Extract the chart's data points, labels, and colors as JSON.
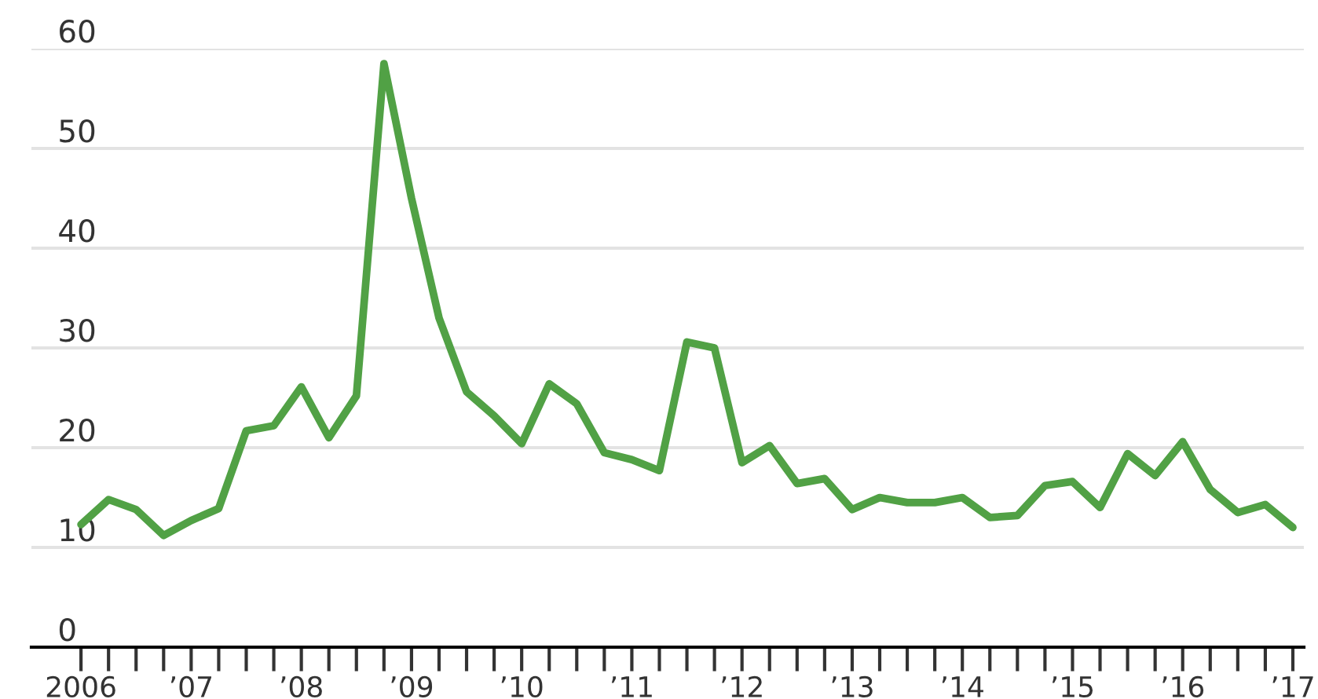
{
  "chart_data": {
    "type": "line",
    "x": [
      2006,
      2006.25,
      2006.5,
      2006.75,
      2007,
      2007.25,
      2007.5,
      2007.75,
      2008,
      2008.25,
      2008.5,
      2008.75,
      2009,
      2009.25,
      2009.5,
      2009.75,
      2010,
      2010.25,
      2010.5,
      2010.75,
      2011,
      2011.25,
      2011.5,
      2011.75,
      2012,
      2012.25,
      2012.5,
      2012.75,
      2013,
      2013.25,
      2013.5,
      2013.75,
      2014,
      2014.25,
      2014.5,
      2014.75,
      2015,
      2015.25,
      2015.5,
      2015.75,
      2016,
      2016.25,
      2016.5,
      2016.75,
      2017
    ],
    "series": [
      {
        "color": "#51a145",
        "values": [
          12.3,
          14.8,
          13.8,
          11.2,
          12.7,
          13.9,
          21.7,
          22.2,
          26.1,
          21.0,
          25.2,
          58.5,
          45.0,
          33.0,
          25.6,
          23.2,
          20.4,
          26.4,
          24.4,
          19.5,
          18.8,
          17.7,
          30.6,
          30.0,
          18.5,
          20.2,
          16.4,
          16.9,
          13.8,
          15.0,
          14.5,
          14.5,
          15.0,
          13.0,
          13.2,
          16.2,
          16.6,
          14.0,
          19.4,
          17.2,
          20.6,
          15.8,
          13.5,
          14.3,
          12.0
        ]
      }
    ],
    "xlim": [
      2005.55,
      2017.1
    ],
    "xticks": [
      {
        "value": 2006,
        "label": "2006"
      },
      {
        "value": 2006.25,
        "label": null
      },
      {
        "value": 2006.5,
        "label": null
      },
      {
        "value": 2006.75,
        "label": null
      },
      {
        "value": 2007,
        "label": "’07"
      },
      {
        "value": 2007.25,
        "label": null
      },
      {
        "value": 2007.5,
        "label": null
      },
      {
        "value": 2007.75,
        "label": null
      },
      {
        "value": 2008,
        "label": "’08"
      },
      {
        "value": 2008.25,
        "label": null
      },
      {
        "value": 2008.5,
        "label": null
      },
      {
        "value": 2008.75,
        "label": null
      },
      {
        "value": 2009,
        "label": "’09"
      },
      {
        "value": 2009.25,
        "label": null
      },
      {
        "value": 2009.5,
        "label": null
      },
      {
        "value": 2009.75,
        "label": null
      },
      {
        "value": 2010,
        "label": "’10"
      },
      {
        "value": 2010.25,
        "label": null
      },
      {
        "value": 2010.5,
        "label": null
      },
      {
        "value": 2010.75,
        "label": null
      },
      {
        "value": 2011,
        "label": "’11"
      },
      {
        "value": 2011.25,
        "label": null
      },
      {
        "value": 2011.5,
        "label": null
      },
      {
        "value": 2011.75,
        "label": null
      },
      {
        "value": 2012,
        "label": "’12"
      },
      {
        "value": 2012.25,
        "label": null
      },
      {
        "value": 2012.5,
        "label": null
      },
      {
        "value": 2012.75,
        "label": null
      },
      {
        "value": 2013,
        "label": "’13"
      },
      {
        "value": 2013.25,
        "label": null
      },
      {
        "value": 2013.5,
        "label": null
      },
      {
        "value": 2013.75,
        "label": null
      },
      {
        "value": 2014,
        "label": "’14"
      },
      {
        "value": 2014.25,
        "label": null
      },
      {
        "value": 2014.5,
        "label": null
      },
      {
        "value": 2014.75,
        "label": null
      },
      {
        "value": 2015,
        "label": "’15"
      },
      {
        "value": 2015.25,
        "label": null
      },
      {
        "value": 2015.5,
        "label": null
      },
      {
        "value": 2015.75,
        "label": null
      },
      {
        "value": 2016,
        "label": "’16"
      },
      {
        "value": 2016.25,
        "label": null
      },
      {
        "value": 2016.5,
        "label": null
      },
      {
        "value": 2016.75,
        "label": null
      },
      {
        "value": 2017,
        "label": "’17"
      }
    ],
    "ylim": [
      0,
      60
    ],
    "yticks": [
      0,
      10,
      20,
      30,
      40,
      50,
      60
    ],
    "grid": "y",
    "legend": false,
    "marker": "none",
    "line_style": "solid"
  }
}
